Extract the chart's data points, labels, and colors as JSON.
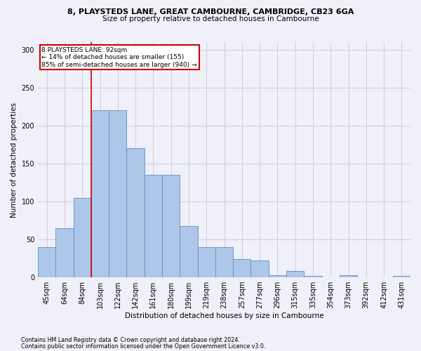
{
  "title1": "8, PLAYSTEDS LANE, GREAT CAMBOURNE, CAMBRIDGE, CB23 6GA",
  "title2": "Size of property relative to detached houses in Cambourne",
  "xlabel": "Distribution of detached houses by size in Cambourne",
  "ylabel": "Number of detached properties",
  "categories": [
    "45sqm",
    "64sqm",
    "84sqm",
    "103sqm",
    "122sqm",
    "142sqm",
    "161sqm",
    "180sqm",
    "199sqm",
    "219sqm",
    "238sqm",
    "257sqm",
    "277sqm",
    "296sqm",
    "315sqm",
    "335sqm",
    "354sqm",
    "373sqm",
    "392sqm",
    "412sqm",
    "431sqm"
  ],
  "values": [
    40,
    65,
    105,
    220,
    220,
    170,
    135,
    135,
    68,
    40,
    40,
    24,
    22,
    3,
    8,
    2,
    0,
    3,
    0,
    0,
    2
  ],
  "bar_color": "#aec6e8",
  "bar_edge_color": "#5b8fc9",
  "property_line_idx": 2,
  "annotation_line1": "8 PLAYSTEDS LANE: 92sqm",
  "annotation_line2": "← 14% of detached houses are smaller (155)",
  "annotation_line3": "85% of semi-detached houses are larger (940) →",
  "annotation_box_color": "#ffffff",
  "annotation_box_edge_color": "#cc0000",
  "vline_color": "#cc0000",
  "ylim": [
    0,
    310
  ],
  "yticks": [
    0,
    50,
    100,
    150,
    200,
    250,
    300
  ],
  "footnote1": "Contains HM Land Registry data © Crown copyright and database right 2024.",
  "footnote2": "Contains public sector information licensed under the Open Government Licence v3.0.",
  "bg_color": "#f0f0f8",
  "grid_color": "#c8c8dc"
}
